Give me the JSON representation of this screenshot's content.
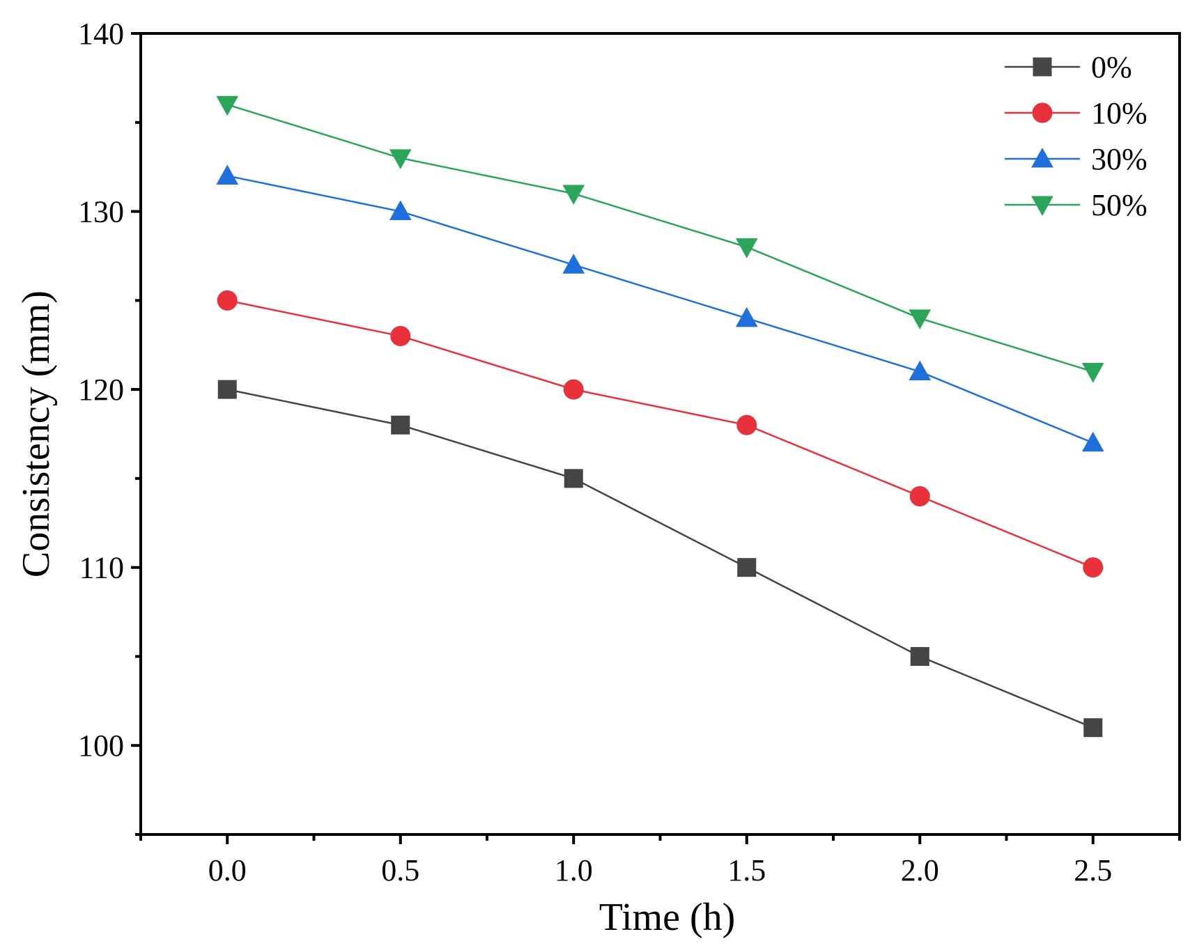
{
  "chart_data": {
    "type": "line",
    "title": "",
    "xlabel": "Time (h)",
    "ylabel": "Consistency (mm)",
    "x": [
      0.0,
      0.5,
      1.0,
      1.5,
      2.0,
      2.5
    ],
    "xlim": [
      -0.25,
      2.75
    ],
    "ylim": [
      95,
      140
    ],
    "xticks": [
      0.0,
      0.5,
      1.0,
      1.5,
      2.0,
      2.5
    ],
    "xtick_labels": [
      "0.0",
      "0.5",
      "1.0",
      "1.5",
      "2.0",
      "2.5"
    ],
    "yticks": [
      100,
      110,
      120,
      130,
      140
    ],
    "ytick_labels": [
      "100",
      "110",
      "120",
      "130",
      "140"
    ],
    "grid": false,
    "legend_position": "top-right",
    "series": [
      {
        "name": "0%",
        "marker": "square",
        "color": "#454545",
        "values": [
          120,
          118,
          115,
          110,
          105,
          101
        ]
      },
      {
        "name": "10%",
        "marker": "circle",
        "color": "#e8313a",
        "values": [
          125,
          123,
          120,
          118,
          114,
          110
        ]
      },
      {
        "name": "30%",
        "marker": "triangle-up",
        "color": "#1f6fdc",
        "values": [
          132,
          130,
          127,
          124,
          121,
          117
        ]
      },
      {
        "name": "50%",
        "marker": "triangle-down",
        "color": "#2aa55a",
        "values": [
          136,
          133,
          131,
          128,
          124,
          121
        ]
      }
    ]
  }
}
